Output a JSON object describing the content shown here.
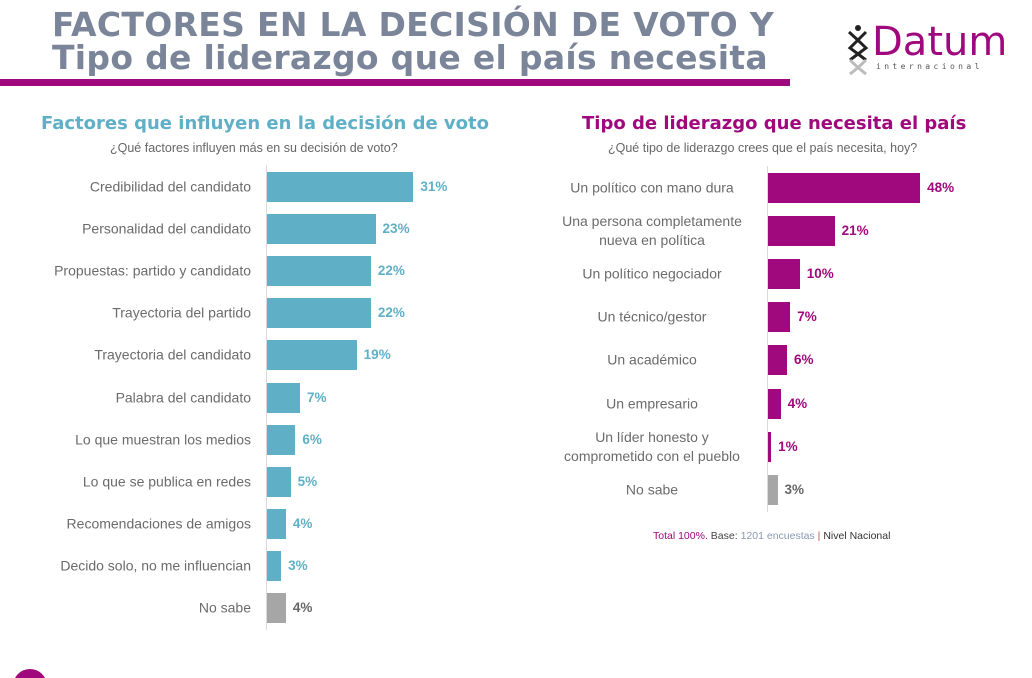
{
  "header": {
    "title_line1": "FACTORES EN LA DECISIÓN DE VOTO Y",
    "title_line2": "Tipo de liderazgo que el país necesita"
  },
  "logo": {
    "name": "Datum",
    "sub": "internacional"
  },
  "colors": {
    "title": "#7b8599",
    "accent": "#a0087e",
    "teal": "#5fb0c7",
    "gray": "#a6a6a6"
  },
  "chart_data": [
    {
      "type": "bar",
      "orientation": "horizontal",
      "title": "Factores que influyen en la decisión de voto",
      "subtitle": "¿Qué factores influyen más en su decisión de voto?",
      "categories": [
        "Credibilidad del candidato",
        "Personalidad del candidato",
        "Propuestas: partido y candidato",
        "Trayectoria del partido",
        "Trayectoria del candidato",
        "Palabra del candidato",
        "Lo que muestran los medios",
        "Lo que se publica en redes",
        "Recomendaciones de amigos",
        "Decido solo, no me influencian",
        "No sabe"
      ],
      "values": [
        31,
        23,
        22,
        22,
        19,
        7,
        6,
        5,
        4,
        3,
        4
      ],
      "labels": [
        "31%",
        "23%",
        "22%",
        "22%",
        "19%",
        "7%",
        "6%",
        "5%",
        "4%",
        "3%",
        "4%"
      ],
      "unit": "%"
    },
    {
      "type": "bar",
      "orientation": "horizontal",
      "title": "Tipo de liderazgo que necesita el país",
      "subtitle": "¿Qué tipo de liderazgo crees que el país necesita, hoy?",
      "categories": [
        "Un político con mano dura",
        "Una persona completamente nueva en política",
        "Un político negociador",
        "Un técnico/gestor",
        "Un académico",
        "Un empresario",
        "Un líder honesto y comprometido con el pueblo",
        "No sabe"
      ],
      "category_lines": [
        [
          "Un político con mano dura"
        ],
        [
          "Una persona completamente",
          "nueva en política"
        ],
        [
          "Un político negociador"
        ],
        [
          "Un técnico/gestor"
        ],
        [
          "Un académico"
        ],
        [
          "Un empresario"
        ],
        [
          "Un líder honesto y",
          "comprometido con el pueblo"
        ],
        [
          "No sabe"
        ]
      ],
      "values": [
        48,
        21,
        10,
        7,
        6,
        4,
        1,
        3
      ],
      "labels": [
        "48%",
        "21%",
        "10%",
        "7%",
        "6%",
        "4%",
        "1%",
        "3%"
      ],
      "unit": "%"
    }
  ],
  "footnote": {
    "total": "Total 100%.",
    "base_label": "Base:",
    "base_value": "1201 encuestas",
    "sep": "|",
    "scope": "Nivel Nacional"
  }
}
